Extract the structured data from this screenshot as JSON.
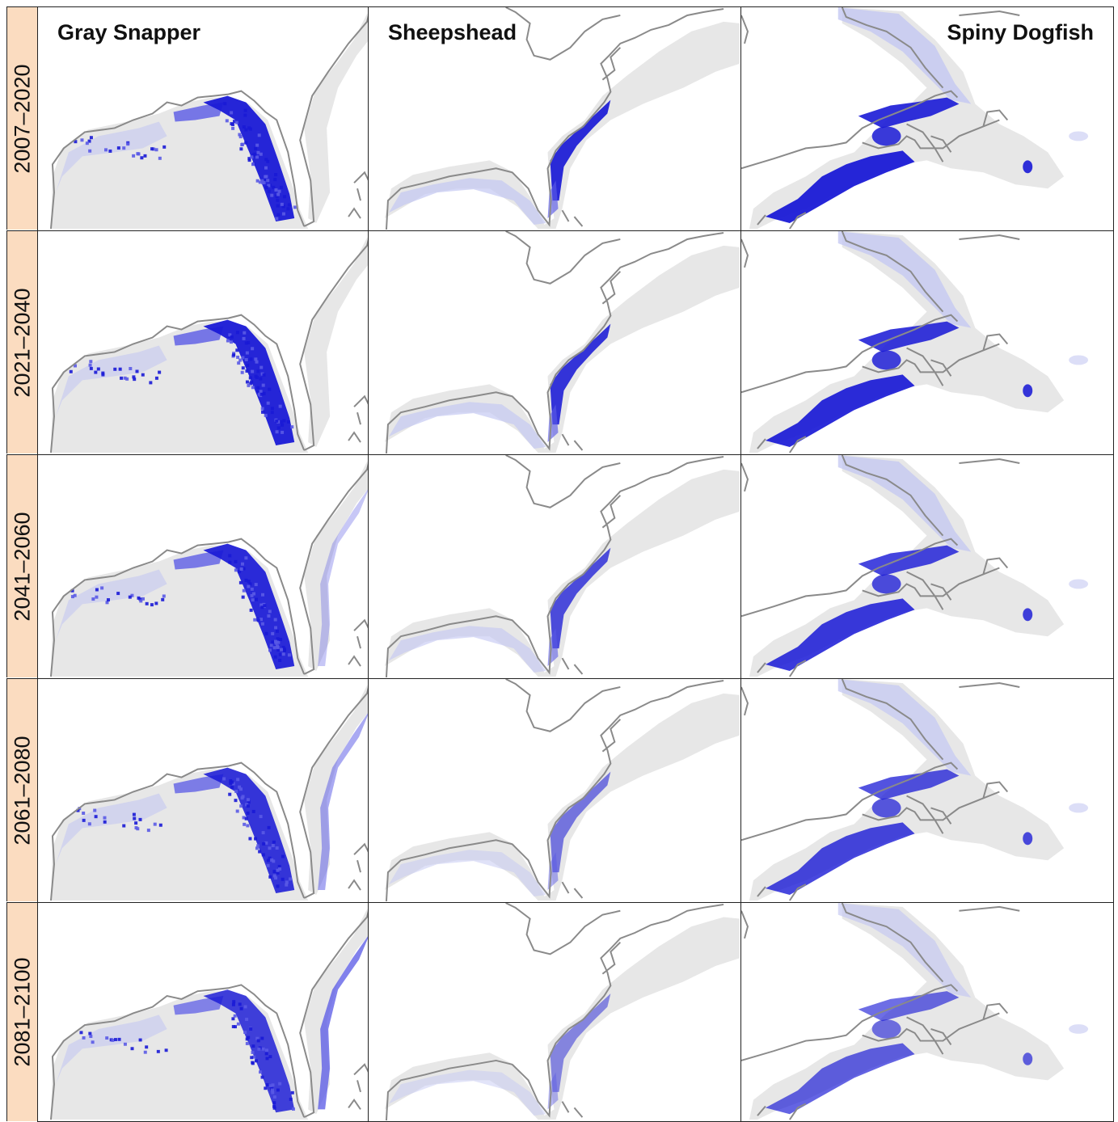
{
  "periods": [
    "2007–2020",
    "2021–2040",
    "2041–2060",
    "2061–2080",
    "2081–2100"
  ],
  "species": [
    "Gray Snapper",
    "Sheepshead",
    "Spiny Dogfish"
  ],
  "colors": {
    "high": "#1a1ad6",
    "mid": "#5a5ae6",
    "low": "#c4c8f2",
    "shelf": "#e7e7e7",
    "coast": "#8a8a8a",
    "tab": "#fbdcc0"
  },
  "density": {
    "gray_snapper": [
      1.0,
      1.0,
      0.95,
      0.85,
      0.75
    ],
    "sheepshead": [
      0.9,
      0.85,
      0.7,
      0.45,
      0.35
    ],
    "spiny_dogfish": [
      1.0,
      0.95,
      0.85,
      0.75,
      0.55
    ]
  },
  "northward_spread": {
    "gray_snapper": [
      0.0,
      0.0,
      0.15,
      0.45,
      0.85
    ]
  }
}
